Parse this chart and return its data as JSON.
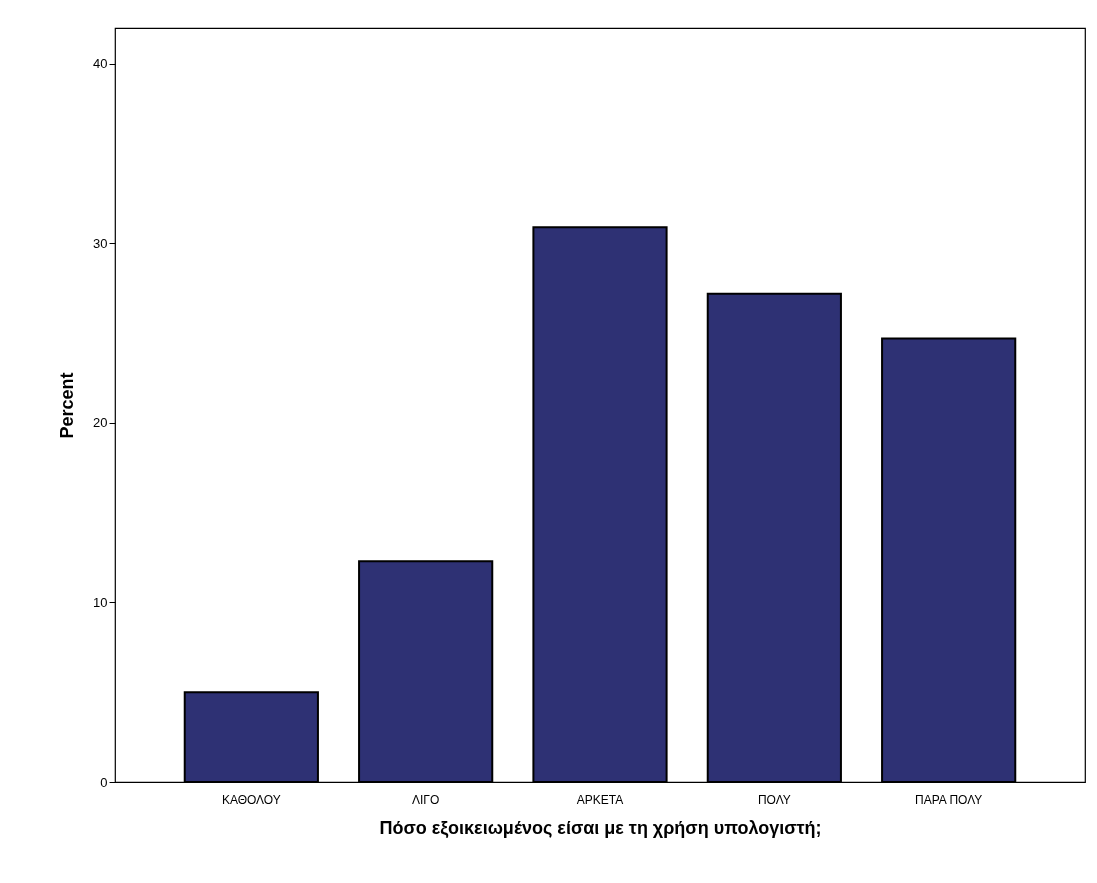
{
  "chart_data": {
    "type": "bar",
    "xlabel": "Πόσο εξοικειωμένος είσαι με τη χρήση υπολογιστή;",
    "ylabel": "Percent",
    "categories": [
      "ΚΑΘΟΛΟΥ",
      "ΛΙΓΟ",
      "ΑΡΚΕΤΑ",
      "ΠΟΛΥ",
      "ΠΑΡΑ ΠΟΛΥ"
    ],
    "values": [
      5.0,
      12.3,
      30.9,
      27.2,
      24.7
    ],
    "color": "#2e3174",
    "ylim": [
      0,
      42
    ],
    "yticks": [
      0,
      10,
      20,
      30,
      40
    ],
    "grid": false
  }
}
